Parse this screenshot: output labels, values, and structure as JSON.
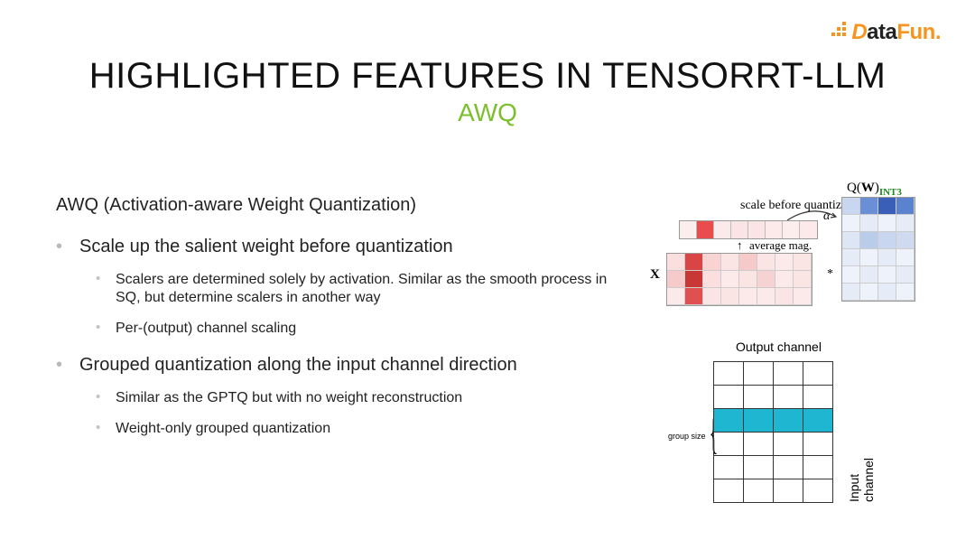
{
  "logo": {
    "d": "D",
    "ata": "ata",
    "fun": "Fun",
    "dot": "."
  },
  "title": "HIGHLIGHTED FEATURES IN TENSORRT-LLM",
  "subtitle": "AWQ",
  "heading": "AWQ (Activation-aware Weight Quantization)",
  "bullets": [
    {
      "text": "Scale up the salient weight before quantization",
      "sub": [
        "Scalers are determined solely by activation. Similar as the smooth process in SQ, but determine scalers in another way",
        "Per-(output) channel scaling"
      ]
    },
    {
      "text": "Grouped quantization along the input channel direction",
      "sub": [
        "Similar as the GPTQ but with no weight reconstruction",
        "Weight-only grouped quantization"
      ]
    }
  ],
  "diagram1": {
    "qw_prefix": "Q(",
    "qw_w": "W",
    "qw_suffix": ")",
    "qw_int": "INT3",
    "scale_label": "scale before quantize",
    "alpha": "α",
    "avg_label": "average mag.",
    "x_label": "X",
    "star": "*",
    "scale_row_colors": [
      "#fdeeee",
      "#e84c4c",
      "#fceaea",
      "#fbe4e4",
      "#fbe4e4",
      "#fceaea",
      "#fdeeee",
      "#fceaea"
    ],
    "matX_colors": [
      "#fbdede",
      "#d94444",
      "#f9d2d2",
      "#fbe4e4",
      "#f7caca",
      "#fbe4e4",
      "#fceaea",
      "#fbe4e4",
      "#f7caca",
      "#c93636",
      "#fbdede",
      "#fceaea",
      "#fbe4e4",
      "#f7d2d2",
      "#fceaea",
      "#fbe4e4",
      "#fceaea",
      "#e05050",
      "#fbe4e4",
      "#fbe4e4",
      "#fceaea",
      "#fceaea",
      "#fbe4e4",
      "#fceaea"
    ],
    "matQ_colors": [
      "#c8d6ef",
      "#6a8fd6",
      "#3a5fb8",
      "#5a82cf",
      "#eef2fa",
      "#e6ecf7",
      "#eef2fa",
      "#e6ecf7",
      "#dde6f4",
      "#b9cdea",
      "#c8d6ef",
      "#cfdaf0",
      "#e6ecf7",
      "#eef2fa",
      "#e6ecf7",
      "#eef2fa",
      "#eef2fa",
      "#e6ecf7",
      "#eef2fa",
      "#e6ecf7",
      "#e6ecf7",
      "#eef2fa",
      "#e6ecf7",
      "#eef2fa"
    ]
  },
  "diagram2": {
    "output_label": "Output channel",
    "input_label": "Input channel",
    "group_label": "group size",
    "rows": 6,
    "cols": 4,
    "highlight_row_index": 2,
    "highlight_color": "#1fb6d1",
    "grid_border_color": "#333333"
  }
}
